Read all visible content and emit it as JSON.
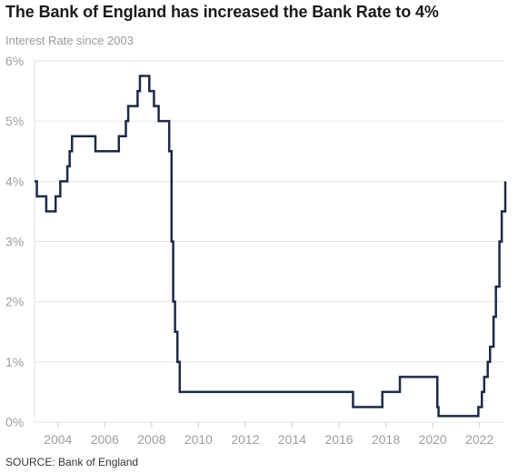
{
  "header": {
    "title": "The Bank of England has increased the Bank Rate to 4%",
    "subtitle": "Interest Rate since 2003"
  },
  "footer": {
    "source": "SOURCE: Bank of England"
  },
  "colors": {
    "line": "#1c2a48",
    "grid": "#e6e6e6",
    "tick_text": "#9e9e9e"
  },
  "chart_data": {
    "type": "line",
    "step": true,
    "title": "The Bank of England has increased the Bank Rate to 4%",
    "subtitle": "Interest Rate since 2003",
    "xlabel": "",
    "ylabel": "",
    "xlim": [
      2003.0,
      2023.1
    ],
    "ylim": [
      0,
      6
    ],
    "y_ticks": [
      0,
      1,
      2,
      3,
      4,
      5,
      6
    ],
    "y_tick_labels": [
      "0%",
      "1%",
      "2%",
      "3%",
      "4%",
      "5%",
      "6%"
    ],
    "x_ticks": [
      2004,
      2006,
      2008,
      2010,
      2012,
      2014,
      2016,
      2018,
      2020,
      2022
    ],
    "x_tick_labels": [
      "2004",
      "2006",
      "2008",
      "2010",
      "2012",
      "2014",
      "2016",
      "2018",
      "2020",
      "2022"
    ],
    "grid": "horizontal",
    "legend": "none",
    "series": [
      {
        "x": [
          2003.0,
          2003.1,
          2003.5,
          2003.9,
          2004.1,
          2004.4,
          2004.5,
          2004.6,
          2005.6,
          2006.6,
          2006.9,
          2007.0,
          2007.4,
          2007.5,
          2007.9,
          2007.95,
          2008.1,
          2008.3,
          2008.75,
          2008.85,
          2008.92,
          2009.0,
          2009.1,
          2009.2,
          2016.6,
          2017.85,
          2018.6,
          2020.2,
          2020.25,
          2021.95,
          2022.1,
          2022.2,
          2022.35,
          2022.45,
          2022.6,
          2022.7,
          2022.85,
          2022.95,
          2023.1
        ],
        "y": [
          4.0,
          3.75,
          3.5,
          3.75,
          4.0,
          4.25,
          4.5,
          4.75,
          4.5,
          4.75,
          5.0,
          5.25,
          5.5,
          5.75,
          5.5,
          5.5,
          5.25,
          5.0,
          4.5,
          3.0,
          2.0,
          1.5,
          1.0,
          0.5,
          0.25,
          0.5,
          0.75,
          0.25,
          0.1,
          0.25,
          0.5,
          0.75,
          1.0,
          1.25,
          1.75,
          2.25,
          3.0,
          3.5,
          4.0
        ]
      }
    ]
  }
}
